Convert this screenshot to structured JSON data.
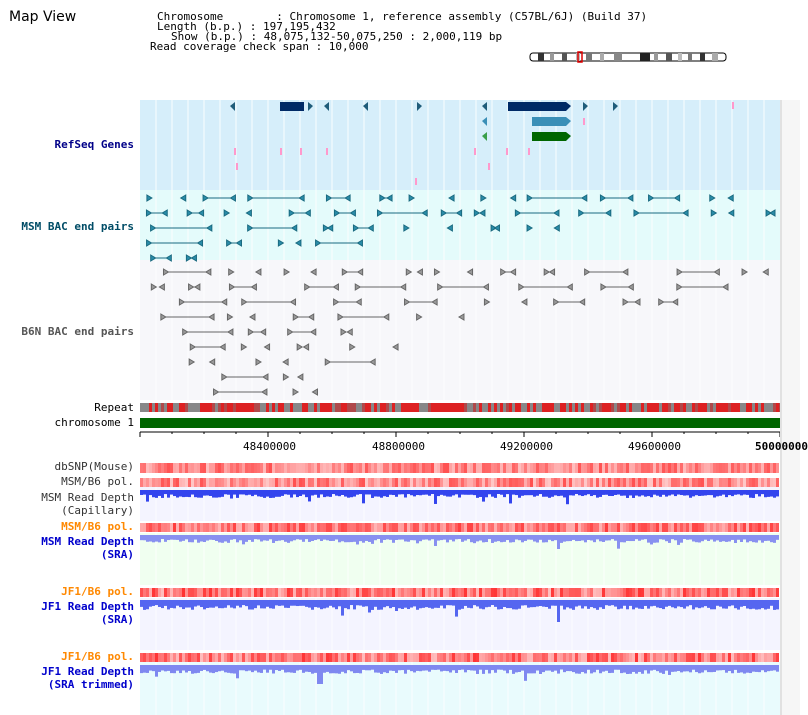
{
  "page": {
    "title": "Map View"
  },
  "info": {
    "line1": "Chromosome        : Chromosome 1, reference assembly (C57BL/6J) (Build 37)",
    "line2": "Length (b.p.) : 197,195,432",
    "line3": "Show (b.p.) : 48,075,132-50,075,250 : 2,000,119 bp",
    "line4": "Read coverage check span : 10,000"
  },
  "tracks": {
    "refseq": "RefSeq Genes",
    "msm_bac": "MSM BAC end pairs",
    "b6n_bac": "B6N BAC end pairs",
    "repeat": "Repeat",
    "chromosome": "chromosome 1",
    "dbsnp": "dbSNP(Mouse)",
    "msm_b6_pol": "MSM/B6 pol.",
    "msm_depth_cap_1": "MSM Read Depth",
    "msm_depth_cap_2": "(Capillary)",
    "msm_b6_pol2": "MSM/B6 pol.",
    "msm_depth_sra_1": "MSM Read Depth",
    "msm_depth_sra_2": "(SRA)",
    "jf1_b6_pol": "JF1/B6 pol.",
    "jf1_depth_sra_1": "JF1 Read Depth",
    "jf1_depth_sra_2": "(SRA)",
    "jf1_b6_pol2": "JF1/B6 pol.",
    "jf1_depth_trim_1": "JF1 Read Depth",
    "jf1_depth_trim_2": "(SRA trimmed)"
  },
  "axis": {
    "ticks": [
      "48400000",
      "48800000",
      "49200000",
      "49600000",
      "50000000"
    ]
  },
  "colors": {
    "refseq_bg": "#d6eefa",
    "msm_bac_bg": "#e4fbfb",
    "b6n_bg": "#f7f7fa",
    "chromosome_bar": "#006600",
    "gene_dark": "#002a66",
    "gene_mid": "#3a8fb7",
    "gene_green": "#006600",
    "repeat_red": "#dd2222",
    "repeat_grey": "#888888"
  }
}
